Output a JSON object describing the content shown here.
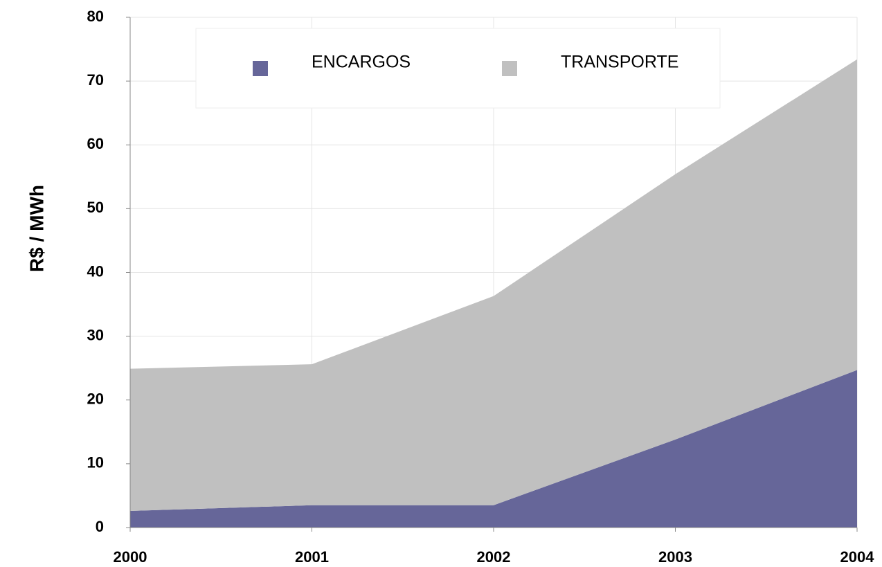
{
  "chart_data": {
    "type": "stacked-area",
    "y_label": "R$ / MWh",
    "categories": [
      "2000",
      "2001",
      "2002",
      "2003",
      "2004"
    ],
    "series": [
      {
        "name": "ENCARGOS",
        "color": "#666699",
        "values": [
          2.6,
          3.5,
          3.5,
          13.8,
          24.7
        ]
      },
      {
        "name": "TRANSPORTE",
        "color": "#c0c0c0",
        "values": [
          22.3,
          22.1,
          32.8,
          41.6,
          48.7
        ]
      }
    ],
    "ylim": [
      0,
      80
    ],
    "yticks": [
      0,
      10,
      20,
      30,
      40,
      50,
      60,
      70,
      80
    ],
    "grid": true
  }
}
